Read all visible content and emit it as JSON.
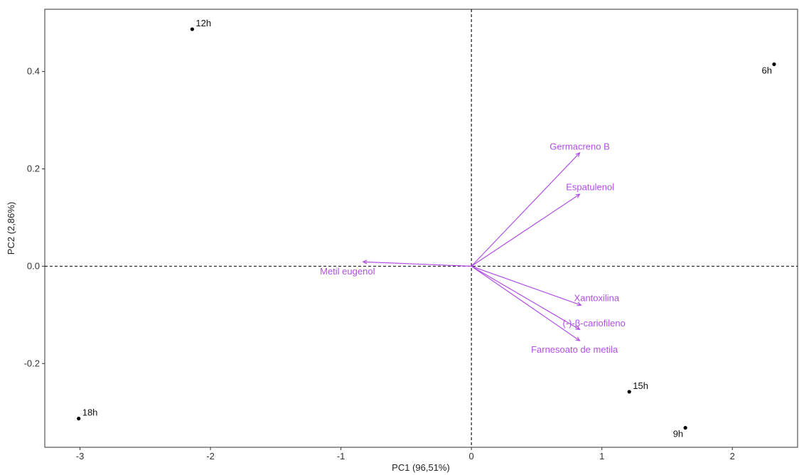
{
  "chart_data": {
    "type": "scatter",
    "subtype": "pca-biplot",
    "title": "",
    "xlabel": "PC1 (96,51%)",
    "ylabel": "PC2 (2,86%)",
    "xlim": [
      -3.27,
      2.5
    ],
    "ylim": [
      -0.372,
      0.528
    ],
    "xticks": [
      -3,
      -2,
      -1,
      0,
      1,
      2
    ],
    "xtick_labels": [
      "-3",
      "-2",
      "-1",
      "0",
      "1",
      "2"
    ],
    "yticks": [
      -0.2,
      0.0,
      0.2,
      0.4
    ],
    "ytick_labels": [
      "-0.2",
      "0.0",
      "0.2",
      "0.4"
    ],
    "grid": false,
    "reference_lines": {
      "x": 0,
      "y": 0,
      "style": "dashed"
    },
    "point_color": "#000000",
    "vector_color": "#b14fe6",
    "points": [
      {
        "label": "12h",
        "x": -2.14,
        "y": 0.487,
        "label_pos": "upper-right"
      },
      {
        "label": "6h",
        "x": 2.32,
        "y": 0.415,
        "label_pos": "lower-left"
      },
      {
        "label": "18h",
        "x": -3.01,
        "y": -0.313,
        "label_pos": "upper-right"
      },
      {
        "label": "15h",
        "x": 1.21,
        "y": -0.258,
        "label_pos": "upper-right"
      },
      {
        "label": "9h",
        "x": 1.64,
        "y": -0.332,
        "label_pos": "lower-left"
      }
    ],
    "vectors": [
      {
        "label": "Germacreno B",
        "x": 0.83,
        "y": 0.233,
        "label_x": 0.83,
        "label_y": 0.245
      },
      {
        "label": "Espatulenol",
        "x": 0.83,
        "y": 0.148,
        "label_x": 0.91,
        "label_y": 0.162
      },
      {
        "label": "Metil eugenol",
        "x": -0.83,
        "y": 0.009,
        "label_x": -0.95,
        "label_y": -0.011
      },
      {
        "label": "Xantoxilina",
        "x": 0.84,
        "y": -0.08,
        "label_x": 0.96,
        "label_y": -0.066
      },
      {
        "label": "(-)-β-cariofileno",
        "x": 0.83,
        "y": -0.13,
        "label_x": 0.94,
        "label_y": -0.118
      },
      {
        "label": "Farnesoato de metila",
        "x": 0.83,
        "y": -0.153,
        "label_x": 0.79,
        "label_y": -0.172
      }
    ]
  }
}
